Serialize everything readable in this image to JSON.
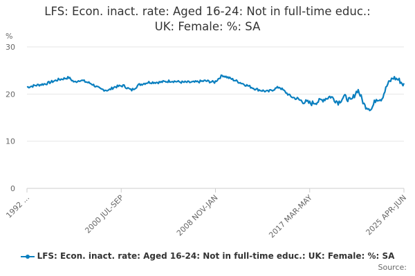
{
  "chart_data": {
    "type": "line",
    "title": "LFS: Econ. inact. rate: Aged 16-24: Not in full-time educ.: UK: Female: %: SA",
    "title_lines": [
      "LFS: Econ. inact. rate: Aged 16-24: Not in full-time educ.:",
      "UK: Female: %: SA"
    ],
    "ylabel": "%",
    "xlabel": "",
    "ylim": [
      0,
      30
    ],
    "yticks": [
      "0",
      "10",
      "20",
      "30"
    ],
    "xticks": [
      "1992 ...",
      "2000 JUL-SEP",
      "2008 NOV-JAN",
      "2017 MAR-MAY",
      "2025 APR-JUN"
    ],
    "xrange": [
      1992.33,
      2025.45
    ],
    "grid": true,
    "legend_position": "bottom",
    "color": "#0a7fbf",
    "series": [
      {
        "name": "LFS: Econ. inact. rate: Aged 16-24: Not in full-time educ.: UK: Female: %: SA",
        "x": [
          1992.4,
          1993.0,
          1994.0,
          1995.0,
          1996.0,
          1996.5,
          1997.0,
          1998.0,
          1998.8,
          1999.5,
          2000.0,
          2000.8,
          2001.5,
          2002.2,
          2003.0,
          2004.0,
          2005.0,
          2006.0,
          2007.0,
          2008.0,
          2008.8,
          2009.5,
          2010.5,
          2011.5,
          2012.5,
          2013.5,
          2014.5,
          2015.5,
          2016.5,
          2017.3,
          2018.0,
          2019.0,
          2019.7,
          2020.2,
          2020.8,
          2021.4,
          2022.0,
          2022.6,
          2023.0,
          2023.5,
          2024.0,
          2024.5,
          2025.0,
          2025.4
        ],
        "values": [
          21.5,
          21.8,
          22.2,
          23.0,
          23.5,
          22.5,
          23.0,
          22.2,
          21.0,
          20.8,
          21.5,
          21.8,
          20.8,
          22.0,
          22.5,
          22.5,
          22.8,
          22.5,
          22.5,
          22.8,
          22.5,
          24.0,
          23.0,
          22.0,
          21.0,
          20.5,
          21.5,
          19.5,
          18.5,
          18.0,
          18.5,
          19.5,
          18.2,
          19.5,
          18.5,
          21.0,
          17.5,
          16.8,
          19.0,
          19.0,
          22.0,
          23.5,
          23.0,
          22.0
        ]
      }
    ],
    "source_label": "Source:"
  }
}
